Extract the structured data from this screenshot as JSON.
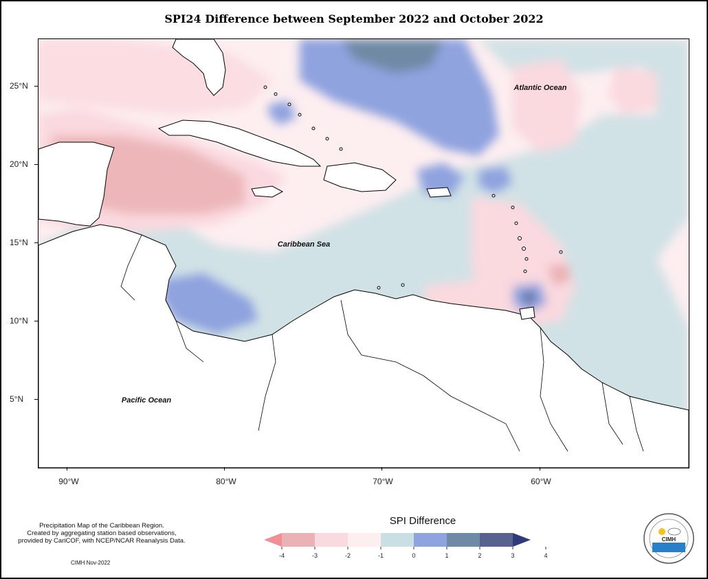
{
  "title": "SPI24 Difference between September 2022 and October 2022",
  "map": {
    "axes": {
      "latitude_labels": [
        "25°N",
        "20°N",
        "15°N",
        "10°N",
        "5°N"
      ],
      "longitude_labels": [
        "90°W",
        "80°W",
        "70°W",
        "60°W"
      ]
    },
    "region_labels": {
      "atlantic": "Atlantic Ocean",
      "caribbean": "Caribbean Sea",
      "pacific": "Pacific Ocean"
    },
    "land_color": "#ffffff",
    "coastline_color": "#000000"
  },
  "legend": {
    "title": "SPI Difference",
    "tick_labels": [
      "-4",
      "-3",
      "-2",
      "-1",
      "0",
      "1",
      "2",
      "3",
      "4"
    ],
    "colors": [
      "#f28f96",
      "#ebb2b6",
      "#fad9df",
      "#fdeef0",
      "#c9dfe4",
      "#8fa3df",
      "#6f8aa6",
      "#58628f",
      "#2f3a7a"
    ]
  },
  "notes": [
    "Precipitation Map of the Caribbean Region.",
    "Created by aggregating station based observations,",
    "provided by CariCOF, with NCEP/NCAR Reanalysis Data."
  ],
  "credit": "CIMH Nov-2022",
  "logo": {
    "text": "CIMH"
  }
}
